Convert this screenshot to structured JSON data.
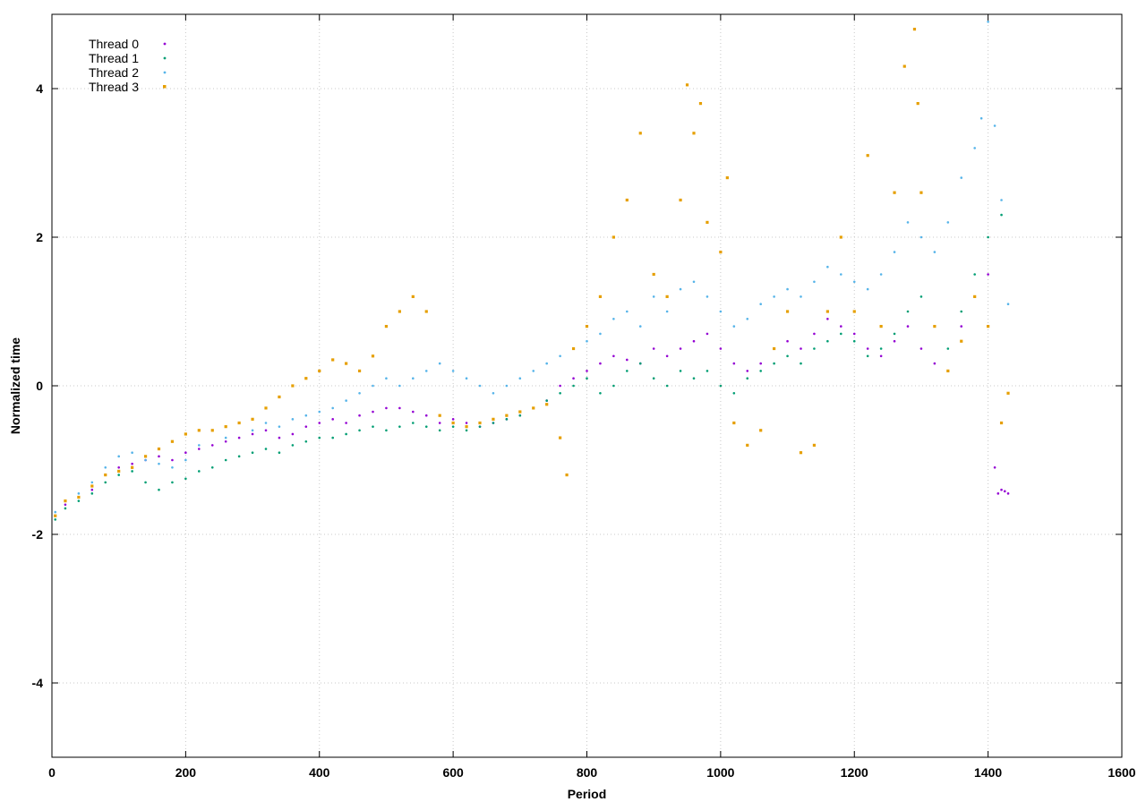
{
  "chart_data": {
    "type": "scatter",
    "title": "",
    "xlabel": "Period",
    "ylabel": "Normalized time",
    "xlim": [
      0,
      1600
    ],
    "ylim": [
      -5,
      5
    ],
    "xticks": [
      "0",
      "200",
      "400",
      "600",
      "800",
      "1000",
      "1200",
      "1400",
      "1600"
    ],
    "yticks": [
      "-4",
      "-2",
      "0",
      "2",
      "4"
    ],
    "grid": true,
    "legend_position": "top-left",
    "series": [
      {
        "name": "Thread 0",
        "color": "#9400d3",
        "marker": "dot",
        "points": [
          [
            5,
            -1.75
          ],
          [
            20,
            -1.6
          ],
          [
            40,
            -1.5
          ],
          [
            60,
            -1.4
          ],
          [
            80,
            -1.2
          ],
          [
            100,
            -1.1
          ],
          [
            120,
            -1.05
          ],
          [
            140,
            -1.0
          ],
          [
            160,
            -0.95
          ],
          [
            180,
            -1.0
          ],
          [
            200,
            -0.9
          ],
          [
            220,
            -0.85
          ],
          [
            240,
            -0.8
          ],
          [
            260,
            -0.75
          ],
          [
            280,
            -0.7
          ],
          [
            300,
            -0.65
          ],
          [
            320,
            -0.6
          ],
          [
            340,
            -0.7
          ],
          [
            360,
            -0.65
          ],
          [
            380,
            -0.55
          ],
          [
            400,
            -0.5
          ],
          [
            420,
            -0.45
          ],
          [
            440,
            -0.5
          ],
          [
            460,
            -0.4
          ],
          [
            480,
            -0.35
          ],
          [
            500,
            -0.3
          ],
          [
            520,
            -0.3
          ],
          [
            540,
            -0.35
          ],
          [
            560,
            -0.4
          ],
          [
            580,
            -0.5
          ],
          [
            600,
            -0.45
          ],
          [
            620,
            -0.5
          ],
          [
            640,
            -0.55
          ],
          [
            660,
            -0.5
          ],
          [
            680,
            -0.45
          ],
          [
            700,
            -0.4
          ],
          [
            720,
            -0.3
          ],
          [
            740,
            -0.2
          ],
          [
            760,
            0.0
          ],
          [
            780,
            0.1
          ],
          [
            800,
            0.2
          ],
          [
            820,
            0.3
          ],
          [
            840,
            0.4
          ],
          [
            860,
            0.35
          ],
          [
            880,
            0.3
          ],
          [
            900,
            0.5
          ],
          [
            920,
            0.4
          ],
          [
            940,
            0.5
          ],
          [
            960,
            0.6
          ],
          [
            980,
            0.7
          ],
          [
            1000,
            0.5
          ],
          [
            1020,
            0.3
          ],
          [
            1040,
            0.2
          ],
          [
            1060,
            0.3
          ],
          [
            1080,
            0.5
          ],
          [
            1100,
            0.6
          ],
          [
            1120,
            0.5
          ],
          [
            1140,
            0.7
          ],
          [
            1160,
            0.9
          ],
          [
            1180,
            0.8
          ],
          [
            1200,
            0.7
          ],
          [
            1220,
            0.5
          ],
          [
            1240,
            0.4
          ],
          [
            1260,
            0.6
          ],
          [
            1280,
            0.8
          ],
          [
            1300,
            0.5
          ],
          [
            1320,
            0.3
          ],
          [
            1340,
            0.2
          ],
          [
            1360,
            0.8
          ],
          [
            1380,
            1.2
          ],
          [
            1400,
            1.5
          ],
          [
            1410,
            -1.1
          ],
          [
            1415,
            -1.45
          ],
          [
            1420,
            -1.4
          ],
          [
            1425,
            -1.42
          ],
          [
            1430,
            -1.45
          ]
        ]
      },
      {
        "name": "Thread 1",
        "color": "#009e73",
        "marker": "dot",
        "points": [
          [
            5,
            -1.8
          ],
          [
            20,
            -1.65
          ],
          [
            40,
            -1.55
          ],
          [
            60,
            -1.45
          ],
          [
            80,
            -1.3
          ],
          [
            100,
            -1.2
          ],
          [
            120,
            -1.15
          ],
          [
            140,
            -1.3
          ],
          [
            160,
            -1.4
          ],
          [
            180,
            -1.3
          ],
          [
            200,
            -1.25
          ],
          [
            220,
            -1.15
          ],
          [
            240,
            -1.1
          ],
          [
            260,
            -1.0
          ],
          [
            280,
            -0.95
          ],
          [
            300,
            -0.9
          ],
          [
            320,
            -0.85
          ],
          [
            340,
            -0.9
          ],
          [
            360,
            -0.8
          ],
          [
            380,
            -0.75
          ],
          [
            400,
            -0.7
          ],
          [
            420,
            -0.7
          ],
          [
            440,
            -0.65
          ],
          [
            460,
            -0.6
          ],
          [
            480,
            -0.55
          ],
          [
            500,
            -0.6
          ],
          [
            520,
            -0.55
          ],
          [
            540,
            -0.5
          ],
          [
            560,
            -0.55
          ],
          [
            580,
            -0.6
          ],
          [
            600,
            -0.55
          ],
          [
            620,
            -0.6
          ],
          [
            640,
            -0.55
          ],
          [
            660,
            -0.5
          ],
          [
            680,
            -0.45
          ],
          [
            700,
            -0.4
          ],
          [
            720,
            -0.3
          ],
          [
            740,
            -0.2
          ],
          [
            760,
            -0.1
          ],
          [
            780,
            0.0
          ],
          [
            800,
            0.1
          ],
          [
            820,
            -0.1
          ],
          [
            840,
            0.0
          ],
          [
            860,
            0.2
          ],
          [
            880,
            0.3
          ],
          [
            900,
            0.1
          ],
          [
            920,
            0.0
          ],
          [
            940,
            0.2
          ],
          [
            960,
            0.1
          ],
          [
            980,
            0.2
          ],
          [
            1000,
            0.0
          ],
          [
            1020,
            -0.1
          ],
          [
            1040,
            0.1
          ],
          [
            1060,
            0.2
          ],
          [
            1080,
            0.3
          ],
          [
            1100,
            0.4
          ],
          [
            1120,
            0.3
          ],
          [
            1140,
            0.5
          ],
          [
            1160,
            0.6
          ],
          [
            1180,
            0.7
          ],
          [
            1200,
            0.6
          ],
          [
            1220,
            0.4
          ],
          [
            1240,
            0.5
          ],
          [
            1260,
            0.7
          ],
          [
            1280,
            1.0
          ],
          [
            1300,
            1.2
          ],
          [
            1320,
            0.8
          ],
          [
            1340,
            0.5
          ],
          [
            1360,
            1.0
          ],
          [
            1380,
            1.5
          ],
          [
            1400,
            2.0
          ],
          [
            1420,
            2.3
          ]
        ]
      },
      {
        "name": "Thread 2",
        "color": "#56b4e9",
        "marker": "dot",
        "points": [
          [
            5,
            -1.7
          ],
          [
            20,
            -1.55
          ],
          [
            40,
            -1.45
          ],
          [
            60,
            -1.3
          ],
          [
            80,
            -1.1
          ],
          [
            100,
            -0.95
          ],
          [
            120,
            -0.9
          ],
          [
            140,
            -1.0
          ],
          [
            160,
            -1.05
          ],
          [
            180,
            -1.1
          ],
          [
            200,
            -1.0
          ],
          [
            220,
            -0.8
          ],
          [
            240,
            -0.6
          ],
          [
            260,
            -0.7
          ],
          [
            280,
            -0.5
          ],
          [
            300,
            -0.6
          ],
          [
            320,
            -0.5
          ],
          [
            340,
            -0.55
          ],
          [
            360,
            -0.45
          ],
          [
            380,
            -0.4
          ],
          [
            400,
            -0.35
          ],
          [
            420,
            -0.3
          ],
          [
            440,
            -0.2
          ],
          [
            460,
            -0.1
          ],
          [
            480,
            0.0
          ],
          [
            500,
            0.1
          ],
          [
            520,
            0.0
          ],
          [
            540,
            0.1
          ],
          [
            560,
            0.2
          ],
          [
            580,
            0.3
          ],
          [
            600,
            0.2
          ],
          [
            620,
            0.1
          ],
          [
            640,
            0.0
          ],
          [
            660,
            -0.1
          ],
          [
            680,
            0.0
          ],
          [
            700,
            0.1
          ],
          [
            720,
            0.2
          ],
          [
            740,
            0.3
          ],
          [
            760,
            0.4
          ],
          [
            780,
            0.5
          ],
          [
            800,
            0.6
          ],
          [
            820,
            0.7
          ],
          [
            840,
            0.9
          ],
          [
            860,
            1.0
          ],
          [
            880,
            0.8
          ],
          [
            900,
            1.2
          ],
          [
            920,
            1.0
          ],
          [
            940,
            1.3
          ],
          [
            960,
            1.4
          ],
          [
            980,
            1.2
          ],
          [
            1000,
            1.0
          ],
          [
            1020,
            0.8
          ],
          [
            1040,
            0.9
          ],
          [
            1060,
            1.1
          ],
          [
            1080,
            1.2
          ],
          [
            1100,
            1.3
          ],
          [
            1120,
            1.2
          ],
          [
            1140,
            1.4
          ],
          [
            1160,
            1.6
          ],
          [
            1180,
            1.5
          ],
          [
            1200,
            1.4
          ],
          [
            1220,
            1.3
          ],
          [
            1240,
            1.5
          ],
          [
            1260,
            1.8
          ],
          [
            1280,
            2.2
          ],
          [
            1300,
            2.0
          ],
          [
            1320,
            1.8
          ],
          [
            1340,
            2.2
          ],
          [
            1360,
            2.8
          ],
          [
            1380,
            3.2
          ],
          [
            1390,
            3.6
          ],
          [
            1400,
            4.9
          ],
          [
            1410,
            3.5
          ],
          [
            1420,
            2.5
          ],
          [
            1430,
            1.1
          ]
        ]
      },
      {
        "name": "Thread 3",
        "color": "#e69f00",
        "marker": "square",
        "points": [
          [
            5,
            -1.75
          ],
          [
            20,
            -1.55
          ],
          [
            40,
            -1.5
          ],
          [
            60,
            -1.35
          ],
          [
            80,
            -1.2
          ],
          [
            100,
            -1.15
          ],
          [
            120,
            -1.1
          ],
          [
            140,
            -0.95
          ],
          [
            160,
            -0.85
          ],
          [
            180,
            -0.75
          ],
          [
            200,
            -0.65
          ],
          [
            220,
            -0.6
          ],
          [
            240,
            -0.6
          ],
          [
            260,
            -0.55
          ],
          [
            280,
            -0.5
          ],
          [
            300,
            -0.45
          ],
          [
            320,
            -0.3
          ],
          [
            340,
            -0.15
          ],
          [
            360,
            0.0
          ],
          [
            380,
            0.1
          ],
          [
            400,
            0.2
          ],
          [
            420,
            0.35
          ],
          [
            440,
            0.3
          ],
          [
            460,
            0.2
          ],
          [
            480,
            0.4
          ],
          [
            500,
            0.8
          ],
          [
            520,
            1.0
          ],
          [
            540,
            1.2
          ],
          [
            560,
            1.0
          ],
          [
            580,
            -0.4
          ],
          [
            600,
            -0.5
          ],
          [
            620,
            -0.55
          ],
          [
            640,
            -0.5
          ],
          [
            660,
            -0.45
          ],
          [
            680,
            -0.4
          ],
          [
            700,
            -0.35
          ],
          [
            720,
            -0.3
          ],
          [
            740,
            -0.25
          ],
          [
            760,
            -0.7
          ],
          [
            770,
            -1.2
          ],
          [
            780,
            0.5
          ],
          [
            800,
            0.8
          ],
          [
            820,
            1.2
          ],
          [
            840,
            2.0
          ],
          [
            860,
            2.5
          ],
          [
            880,
            3.4
          ],
          [
            900,
            1.5
          ],
          [
            920,
            1.2
          ],
          [
            940,
            2.5
          ],
          [
            950,
            4.05
          ],
          [
            960,
            3.4
          ],
          [
            970,
            3.8
          ],
          [
            980,
            2.2
          ],
          [
            1000,
            1.8
          ],
          [
            1010,
            2.8
          ],
          [
            1020,
            -0.5
          ],
          [
            1040,
            -0.8
          ],
          [
            1060,
            -0.6
          ],
          [
            1080,
            0.5
          ],
          [
            1100,
            1.0
          ],
          [
            1120,
            -0.9
          ],
          [
            1140,
            -0.8
          ],
          [
            1160,
            1.0
          ],
          [
            1180,
            2.0
          ],
          [
            1200,
            1.0
          ],
          [
            1220,
            3.1
          ],
          [
            1240,
            0.8
          ],
          [
            1260,
            2.6
          ],
          [
            1275,
            4.3
          ],
          [
            1290,
            4.8
          ],
          [
            1295,
            3.8
          ],
          [
            1300,
            2.6
          ],
          [
            1320,
            0.8
          ],
          [
            1340,
            0.2
          ],
          [
            1360,
            0.6
          ],
          [
            1380,
            1.2
          ],
          [
            1400,
            0.8
          ],
          [
            1420,
            -0.5
          ],
          [
            1430,
            -0.1
          ]
        ]
      }
    ]
  }
}
